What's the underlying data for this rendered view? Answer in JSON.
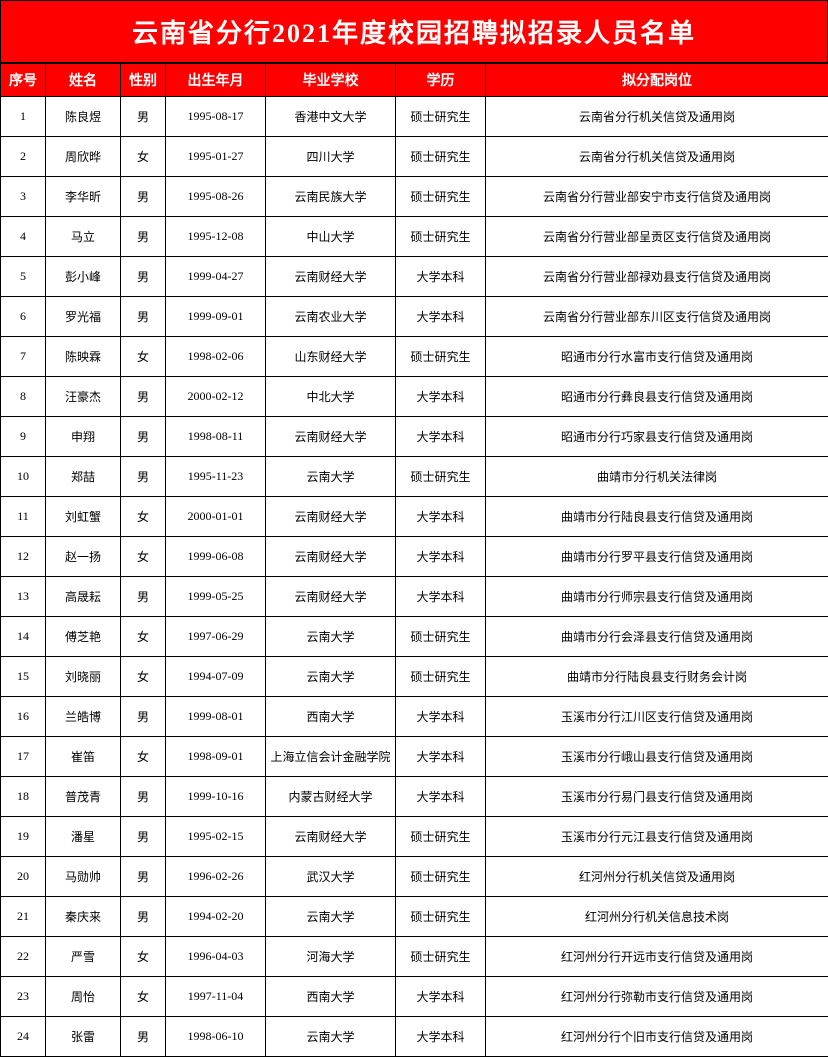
{
  "title": "云南省分行2021年度校园招聘拟招录人员名单",
  "headers": {
    "idx": "序号",
    "name": "姓名",
    "gender": "性别",
    "dob": "出生年月",
    "school": "毕业学校",
    "edu": "学历",
    "pos": "拟分配岗位"
  },
  "rows": [
    {
      "idx": "1",
      "name": "陈良煜",
      "gender": "男",
      "dob": "1995-08-17",
      "school": "香港中文大学",
      "edu": "硕士研究生",
      "pos": "云南省分行机关信贷及通用岗"
    },
    {
      "idx": "2",
      "name": "周欣晔",
      "gender": "女",
      "dob": "1995-01-27",
      "school": "四川大学",
      "edu": "硕士研究生",
      "pos": "云南省分行机关信贷及通用岗"
    },
    {
      "idx": "3",
      "name": "李华昕",
      "gender": "男",
      "dob": "1995-08-26",
      "school": "云南民族大学",
      "edu": "硕士研究生",
      "pos": "云南省分行营业部安宁市支行信贷及通用岗"
    },
    {
      "idx": "4",
      "name": "马立",
      "gender": "男",
      "dob": "1995-12-08",
      "school": "中山大学",
      "edu": "硕士研究生",
      "pos": "云南省分行营业部呈贡区支行信贷及通用岗"
    },
    {
      "idx": "5",
      "name": "彭小峰",
      "gender": "男",
      "dob": "1999-04-27",
      "school": "云南财经大学",
      "edu": "大学本科",
      "pos": "云南省分行营业部禄劝县支行信贷及通用岗"
    },
    {
      "idx": "6",
      "name": "罗光福",
      "gender": "男",
      "dob": "1999-09-01",
      "school": "云南农业大学",
      "edu": "大学本科",
      "pos": "云南省分行营业部东川区支行信贷及通用岗"
    },
    {
      "idx": "7",
      "name": "陈映霖",
      "gender": "女",
      "dob": "1998-02-06",
      "school": "山东财经大学",
      "edu": "硕士研究生",
      "pos": "昭通市分行水富市支行信贷及通用岗"
    },
    {
      "idx": "8",
      "name": "汪豪杰",
      "gender": "男",
      "dob": "2000-02-12",
      "school": "中北大学",
      "edu": "大学本科",
      "pos": "昭通市分行彝良县支行信贷及通用岗"
    },
    {
      "idx": "9",
      "name": "申翔",
      "gender": "男",
      "dob": "1998-08-11",
      "school": "云南财经大学",
      "edu": "大学本科",
      "pos": "昭通市分行巧家县支行信贷及通用岗"
    },
    {
      "idx": "10",
      "name": "郑喆",
      "gender": "男",
      "dob": "1995-11-23",
      "school": "云南大学",
      "edu": "硕士研究生",
      "pos": "曲靖市分行机关法律岗"
    },
    {
      "idx": "11",
      "name": "刘虹蟹",
      "gender": "女",
      "dob": "2000-01-01",
      "school": "云南财经大学",
      "edu": "大学本科",
      "pos": "曲靖市分行陆良县支行信贷及通用岗"
    },
    {
      "idx": "12",
      "name": "赵一扬",
      "gender": "女",
      "dob": "1999-06-08",
      "school": "云南财经大学",
      "edu": "大学本科",
      "pos": "曲靖市分行罗平县支行信贷及通用岗"
    },
    {
      "idx": "13",
      "name": "高晟耘",
      "gender": "男",
      "dob": "1999-05-25",
      "school": "云南财经大学",
      "edu": "大学本科",
      "pos": "曲靖市分行师宗县支行信贷及通用岗"
    },
    {
      "idx": "14",
      "name": "傅芝艳",
      "gender": "女",
      "dob": "1997-06-29",
      "school": "云南大学",
      "edu": "硕士研究生",
      "pos": "曲靖市分行会泽县支行信贷及通用岗"
    },
    {
      "idx": "15",
      "name": "刘晓丽",
      "gender": "女",
      "dob": "1994-07-09",
      "school": "云南大学",
      "edu": "硕士研究生",
      "pos": "曲靖市分行陆良县支行财务会计岗"
    },
    {
      "idx": "16",
      "name": "兰皓博",
      "gender": "男",
      "dob": "1999-08-01",
      "school": "西南大学",
      "edu": "大学本科",
      "pos": "玉溪市分行江川区支行信贷及通用岗"
    },
    {
      "idx": "17",
      "name": "崔笛",
      "gender": "女",
      "dob": "1998-09-01",
      "school": "上海立信会计金融学院",
      "edu": "大学本科",
      "pos": "玉溪市分行峨山县支行信贷及通用岗"
    },
    {
      "idx": "18",
      "name": "普茂青",
      "gender": "男",
      "dob": "1999-10-16",
      "school": "内蒙古财经大学",
      "edu": "大学本科",
      "pos": "玉溪市分行易门县支行信贷及通用岗"
    },
    {
      "idx": "19",
      "name": "潘星",
      "gender": "男",
      "dob": "1995-02-15",
      "school": "云南财经大学",
      "edu": "硕士研究生",
      "pos": "玉溪市分行元江县支行信贷及通用岗"
    },
    {
      "idx": "20",
      "name": "马勋帅",
      "gender": "男",
      "dob": "1996-02-26",
      "school": "武汉大学",
      "edu": "硕士研究生",
      "pos": "红河州分行机关信贷及通用岗"
    },
    {
      "idx": "21",
      "name": "秦庆来",
      "gender": "男",
      "dob": "1994-02-20",
      "school": "云南大学",
      "edu": "硕士研究生",
      "pos": "红河州分行机关信息技术岗"
    },
    {
      "idx": "22",
      "name": "严雪",
      "gender": "女",
      "dob": "1996-04-03",
      "school": "河海大学",
      "edu": "硕士研究生",
      "pos": "红河州分行开远市支行信贷及通用岗"
    },
    {
      "idx": "23",
      "name": "周怡",
      "gender": "女",
      "dob": "1997-11-04",
      "school": "西南大学",
      "edu": "大学本科",
      "pos": "红河州分行弥勒市支行信贷及通用岗"
    },
    {
      "idx": "24",
      "name": "张雷",
      "gender": "男",
      "dob": "1998-06-10",
      "school": "云南大学",
      "edu": "大学本科",
      "pos": "红河州分行个旧市支行信贷及通用岗"
    }
  ],
  "colors": {
    "header_bg": "#ff0000",
    "header_text": "#ffffff",
    "border": "#000000",
    "cell_text": "#000000",
    "background": "#ffffff"
  }
}
